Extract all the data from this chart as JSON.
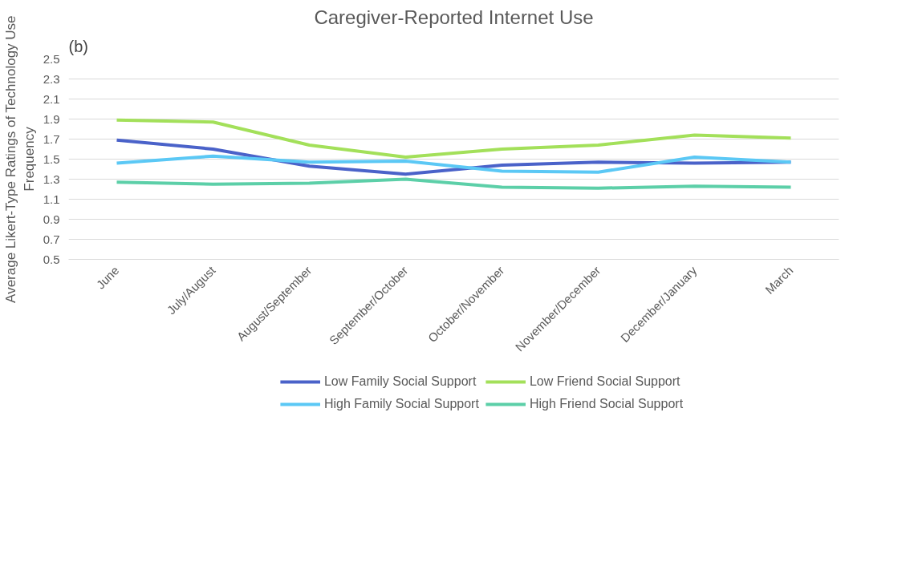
{
  "chart_data": {
    "type": "line",
    "title": "Caregiver-Reported Internet Use",
    "ylabel": "Average Likert-Type Ratings of Technology Use Frequency",
    "annotations": [
      "(b)"
    ],
    "categories": [
      "June",
      "July/August",
      "August/September",
      "September/October",
      "October/November",
      "November/December",
      "December/January",
      "March"
    ],
    "series": [
      {
        "name": "Low Family Social Support",
        "color": "#4a62c9",
        "values": [
          1.69,
          1.6,
          1.43,
          1.35,
          1.44,
          1.47,
          1.46,
          1.47
        ]
      },
      {
        "name": "High Family Social Support",
        "color": "#5bc8f5",
        "values": [
          1.46,
          1.53,
          1.47,
          1.48,
          1.38,
          1.37,
          1.52,
          1.47
        ]
      },
      {
        "name": "Low Friend Social Support",
        "color": "#a3e05a",
        "values": [
          1.89,
          1.87,
          1.64,
          1.52,
          1.6,
          1.64,
          1.74,
          1.71
        ]
      },
      {
        "name": "High Friend Social Support",
        "color": "#5ccfa8",
        "values": [
          1.27,
          1.25,
          1.26,
          1.3,
          1.22,
          1.21,
          1.23,
          1.22
        ]
      }
    ],
    "ylim": [
      0.5,
      2.5
    ],
    "yticks": [
      0.5,
      0.7,
      0.9,
      1.1,
      1.3,
      1.5,
      1.7,
      1.9,
      2.1,
      2.3,
      2.5
    ],
    "grid": "y",
    "legend": "bottom",
    "marker": "none",
    "line_style": "solid"
  }
}
